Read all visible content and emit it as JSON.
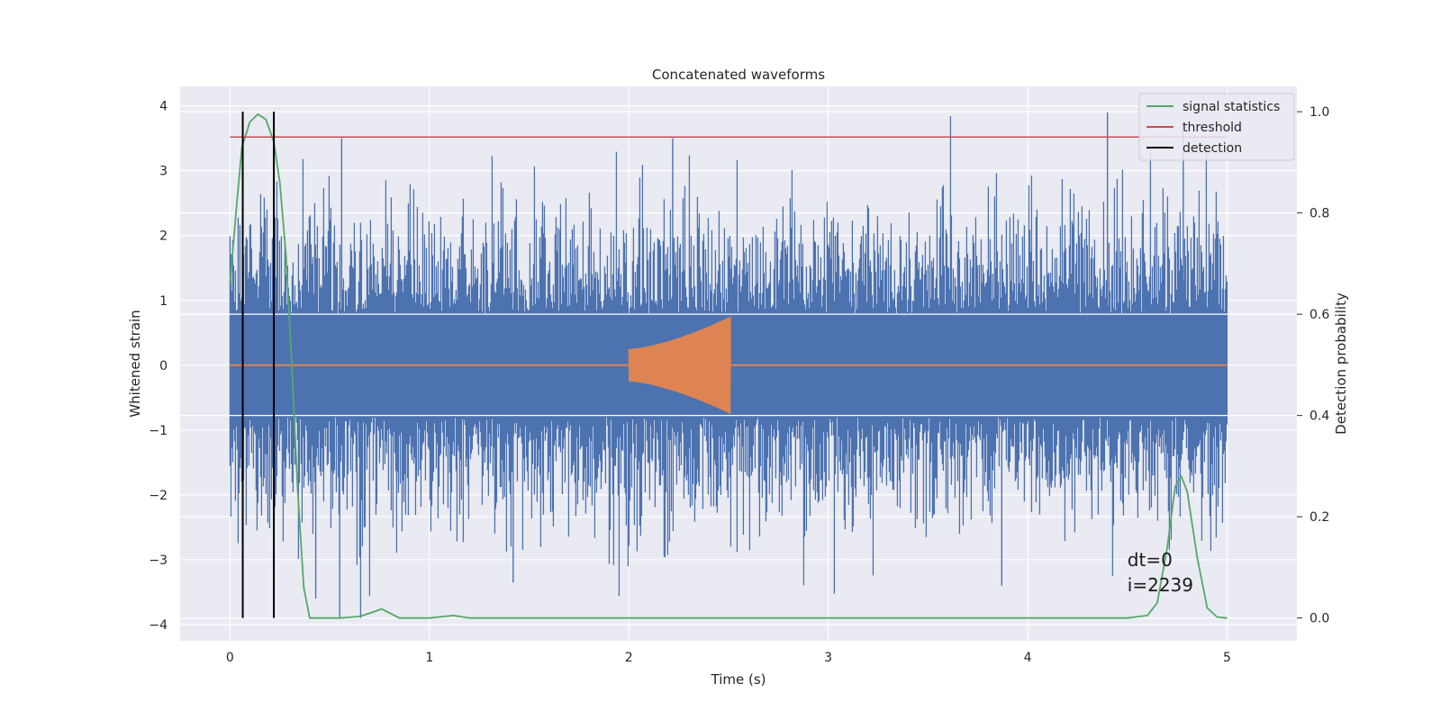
{
  "chart_data": {
    "type": "line",
    "title": "Concatenated waveforms",
    "xlabel": "Time (s)",
    "ylabel": "Whitened strain",
    "ylabel_right": "Detection probability",
    "xlim": [
      -0.25,
      5.35
    ],
    "ylim": [
      -4.25,
      4.3
    ],
    "ylim_right": [
      -0.045,
      1.05
    ],
    "x_ticks": [
      0,
      1,
      2,
      3,
      4,
      5
    ],
    "y_ticks": [
      -4,
      -3,
      -2,
      -1,
      0,
      1,
      2,
      3,
      4
    ],
    "y_ticks_right": [
      0.0,
      0.2,
      0.4,
      0.6,
      0.8,
      1.0
    ],
    "grid": true,
    "legend_position": "top-right",
    "legend": [
      {
        "label": "signal statistics",
        "color": "#55a868"
      },
      {
        "label": "threshold",
        "color": "#c44e52"
      },
      {
        "label": "detection",
        "color": "#000000"
      }
    ],
    "series": [
      {
        "kind": "noise",
        "color": "#4c72b0",
        "x_range": [
          0,
          5
        ],
        "core_amplitude": 0.78,
        "spike_max": 3.9,
        "spike_min": -3.9
      },
      {
        "kind": "chirp",
        "color": "#dd8452",
        "x_range": [
          0,
          5
        ],
        "chirp_start": 2.0,
        "chirp_end": 2.51,
        "amplitude_start": 0.25,
        "amplitude_end": 0.75
      },
      {
        "name": "signal statistics",
        "axis": "right",
        "color": "#55a868",
        "x": [
          0.0,
          0.03,
          0.06,
          0.1,
          0.14,
          0.18,
          0.22,
          0.25,
          0.28,
          0.31,
          0.34,
          0.37,
          0.4,
          0.45,
          0.55,
          0.65,
          0.72,
          0.76,
          0.8,
          0.85,
          1.0,
          1.12,
          1.2,
          1.5,
          2.0,
          3.0,
          4.0,
          4.5,
          4.6,
          4.65,
          4.7,
          4.74,
          4.77,
          4.8,
          4.85,
          4.9,
          4.95,
          5.0
        ],
        "y": [
          0.66,
          0.8,
          0.93,
          0.98,
          0.995,
          0.985,
          0.94,
          0.86,
          0.72,
          0.5,
          0.25,
          0.06,
          0.0,
          0.0,
          0.0,
          0.003,
          0.012,
          0.018,
          0.01,
          0.0,
          0.0,
          0.005,
          0.0,
          0.0,
          0.0,
          0.0,
          0.0,
          0.0,
          0.005,
          0.03,
          0.14,
          0.26,
          0.28,
          0.25,
          0.12,
          0.02,
          0.002,
          0.0
        ]
      },
      {
        "name": "threshold",
        "axis": "right",
        "color": "#c44e52",
        "x": [
          0,
          5
        ],
        "y": [
          0.95,
          0.95
        ]
      }
    ],
    "detections": [
      0.064,
      0.22
    ],
    "annotations": [
      "dt=0",
      "i=2239"
    ]
  }
}
